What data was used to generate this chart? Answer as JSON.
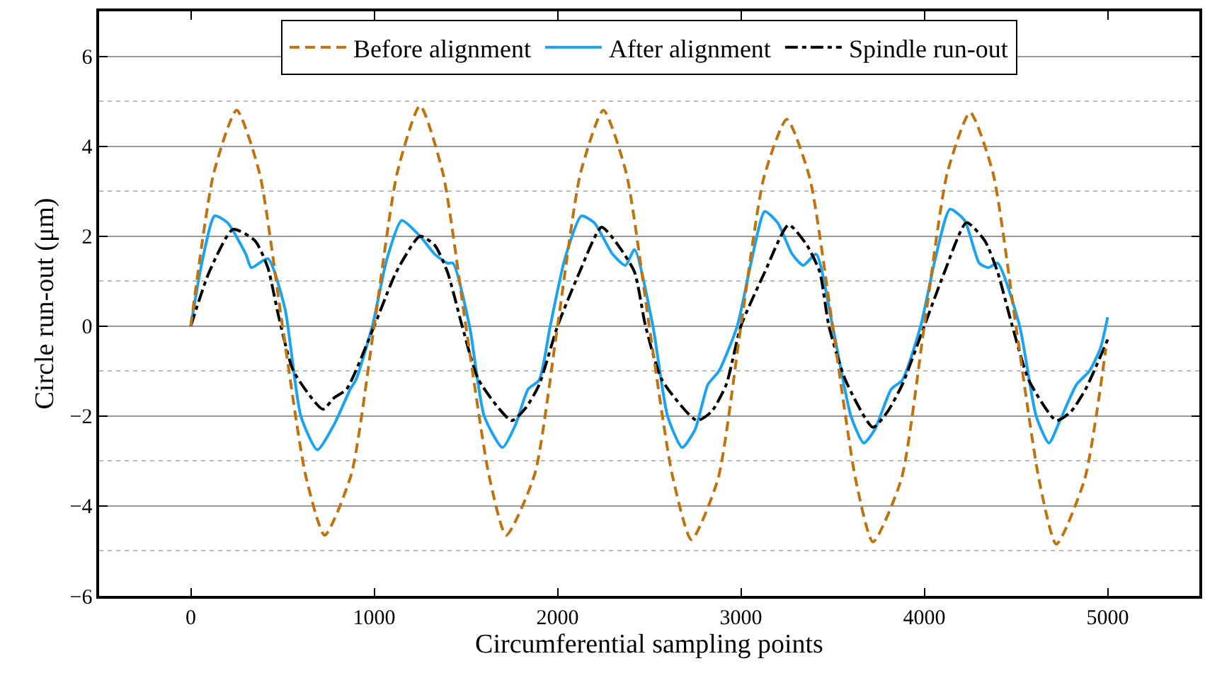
{
  "chart_data": {
    "type": "line",
    "xlabel": "Circumferential sampling points",
    "ylabel": "Circle run-out (μm)",
    "xlim": [
      -500,
      5500
    ],
    "xticks": [
      0,
      1000,
      2000,
      3000,
      4000,
      5000
    ],
    "ylim": [
      -6,
      7
    ],
    "yticks": [
      -6,
      -4,
      -2,
      0,
      2,
      4,
      6
    ],
    "grid": "y",
    "legend": "top",
    "marker": "none",
    "series": [
      {
        "name": "Before alignment",
        "color": "#c0720e",
        "line_style": "dashed",
        "x": [
          0,
          125,
          250,
          375,
          500,
          625,
          730,
          875,
          1000,
          1125,
          1250,
          1375,
          1500,
          1625,
          1720,
          1875,
          2000,
          2125,
          2250,
          2375,
          2500,
          2625,
          2730,
          2875,
          3000,
          3125,
          3250,
          3375,
          3500,
          3625,
          3720,
          3875,
          4000,
          4125,
          4250,
          4375,
          4500,
          4625,
          4720,
          4875,
          4990
        ],
        "values": [
          0,
          3.4,
          4.8,
          3.4,
          0,
          -3.3,
          -4.65,
          -3.3,
          0,
          3.4,
          4.9,
          3.4,
          0,
          -3.3,
          -4.65,
          -3.3,
          0,
          3.4,
          4.8,
          3.4,
          0,
          -3.3,
          -4.75,
          -3.4,
          0,
          3.3,
          4.6,
          3.3,
          0,
          -3.4,
          -4.8,
          -3.4,
          0,
          3.4,
          4.75,
          3.4,
          0,
          -3.4,
          -4.85,
          -3.4,
          -0.5
        ]
      },
      {
        "name": "After alignment",
        "color": "#1aa3f0",
        "line_style": "solid",
        "x": [
          0,
          60,
          130,
          200,
          300,
          330,
          420,
          513,
          600,
          690,
          780,
          870,
          900,
          990,
          1070,
          1150,
          1250,
          1330,
          1400,
          1430,
          1520,
          1600,
          1700,
          1770,
          1840,
          1900,
          1960,
          2040,
          2130,
          2200,
          2300,
          2370,
          2420,
          2520,
          2600,
          2680,
          2750,
          2820,
          2880,
          2980,
          3060,
          3130,
          3200,
          3280,
          3340,
          3410,
          3500,
          3600,
          3670,
          3730,
          3820,
          3880,
          3980,
          4060,
          4140,
          4220,
          4300,
          4350,
          4400,
          4520,
          4610,
          4680,
          4740,
          4830,
          4900,
          4960,
          5000
        ],
        "values": [
          0,
          1.4,
          2.45,
          2.3,
          1.6,
          1.3,
          1.5,
          0.4,
          -2.0,
          -2.75,
          -2.2,
          -1.4,
          -1.2,
          0,
          1.5,
          2.35,
          2.0,
          1.6,
          1.4,
          1.4,
          0,
          -2.0,
          -2.7,
          -2.2,
          -1.4,
          -1.2,
          0,
          1.5,
          2.45,
          2.3,
          1.6,
          1.35,
          1.7,
          0,
          -2.0,
          -2.7,
          -2.3,
          -1.3,
          -1.0,
          0,
          1.5,
          2.55,
          2.3,
          1.6,
          1.35,
          1.6,
          0,
          -2.0,
          -2.6,
          -2.3,
          -1.4,
          -1.2,
          0,
          1.5,
          2.6,
          2.35,
          1.4,
          1.3,
          1.4,
          0,
          -2.0,
          -2.6,
          -2.1,
          -1.3,
          -1.0,
          -0.5,
          0.2
        ]
      },
      {
        "name": "Spindle run-out",
        "color": "#000000",
        "line_style": "dashdot",
        "x": [
          0,
          100,
          230,
          350,
          420,
          480,
          560,
          720,
          780,
          850,
          1000,
          1120,
          1250,
          1330,
          1400,
          1480,
          1570,
          1750,
          1830,
          1900,
          2000,
          2120,
          2240,
          2330,
          2420,
          2480,
          2570,
          2760,
          2840,
          2920,
          3000,
          3130,
          3260,
          3360,
          3430,
          3480,
          3570,
          3720,
          3800,
          3880,
          4000,
          4110,
          4230,
          4330,
          4400,
          4480,
          4570,
          4720,
          4800,
          4880,
          5000
        ],
        "values": [
          0,
          1.2,
          2.15,
          1.9,
          1.3,
          0.2,
          -1.0,
          -1.85,
          -1.6,
          -1.4,
          0,
          1.2,
          2.0,
          1.8,
          1.2,
          0,
          -1.2,
          -2.1,
          -1.8,
          -1.3,
          0,
          1.2,
          2.2,
          1.8,
          1.2,
          0,
          -1.2,
          -2.1,
          -1.9,
          -1.3,
          0,
          1.2,
          2.25,
          1.8,
          1.2,
          0,
          -1.2,
          -2.25,
          -1.9,
          -1.3,
          0,
          1.2,
          2.3,
          1.9,
          1.2,
          0,
          -1.2,
          -2.1,
          -1.9,
          -1.4,
          -0.3
        ]
      }
    ]
  }
}
